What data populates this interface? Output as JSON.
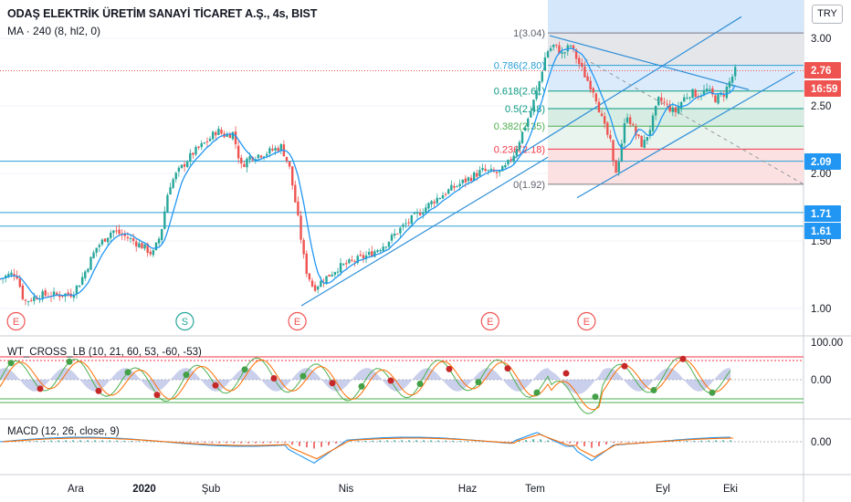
{
  "header": {
    "title": "ODAŞ ELEKTRİK ÜRETİM SANAYİ TİCARET A.Ş., 4s, BIST",
    "indicator": "MA · 240 (8, hl2, 0)",
    "currency": "TRY"
  },
  "colors": {
    "candle_up": "#26a69a",
    "candle_down": "#ef5350",
    "ma_line": "#2196f3",
    "hline": "#2a9fd6",
    "trend": "#2f8fd8",
    "fib_red": "#f23645",
    "fib_green": "#089981",
    "fib_blue": "#2962ff"
  },
  "indicators": {
    "wt_label": "WT_CROSS_LB (10, 21, 60, 53, -60, -53)",
    "macd_label": "MACD (12, 26, close, 9)"
  },
  "chart_data": {
    "type": "candlestick",
    "series_name": "ODAŞ",
    "x_tick_labels": [
      "Ara",
      "2020",
      "Şub",
      "Nis",
      "Haz",
      "Tem",
      "Eyl",
      "Eki"
    ],
    "y_ticks": [
      1.0,
      1.5,
      2.0,
      2.5,
      3.0
    ],
    "y_tick_labels": [
      "1.00",
      "1.50",
      "2.00",
      "2.50",
      "3.00"
    ],
    "ylim": [
      0.9,
      3.25
    ],
    "price_tags": [
      {
        "label": "2.76",
        "value": 2.76,
        "color": "#ef5350"
      },
      {
        "label": "16:59",
        "value": 2.62,
        "color": "#ef5350"
      },
      {
        "label": "2.09",
        "value": 2.09,
        "color": "#2196f3"
      },
      {
        "label": "1.71",
        "value": 1.71,
        "color": "#2196f3"
      },
      {
        "label": "1.61",
        "value": 1.61,
        "color": "#2196f3"
      }
    ],
    "horizontal_lines": [
      2.09,
      1.71,
      1.61
    ],
    "fibonacci": [
      {
        "label": "1(3.04)",
        "value": 3.04
      },
      {
        "label": "0.786(2.80)",
        "value": 2.8
      },
      {
        "label": "0.618(2.61)",
        "value": 2.61
      },
      {
        "label": "0.5(2.48)",
        "value": 2.48
      },
      {
        "label": "0.382(2.35)",
        "value": 2.35
      },
      {
        "label": "0.236(2.18)",
        "value": 2.18
      },
      {
        "label": "0(1.92)",
        "value": 1.92
      }
    ],
    "events": [
      {
        "label": "E",
        "x_frac": 0.02,
        "color": "#ef5350"
      },
      {
        "label": "S",
        "x_frac": 0.23,
        "color": "#26a69a"
      },
      {
        "label": "E",
        "x_frac": 0.37,
        "color": "#ef5350"
      },
      {
        "label": "E",
        "x_frac": 0.61,
        "color": "#ef5350"
      },
      {
        "label": "E",
        "x_frac": 0.73,
        "color": "#ef5350"
      }
    ],
    "price_path": [
      [
        0.0,
        1.22
      ],
      [
        0.02,
        1.27
      ],
      [
        0.03,
        1.05
      ],
      [
        0.05,
        1.1
      ],
      [
        0.07,
        1.1
      ],
      [
        0.09,
        1.11
      ],
      [
        0.1,
        1.2
      ],
      [
        0.12,
        1.45
      ],
      [
        0.14,
        1.58
      ],
      [
        0.16,
        1.52
      ],
      [
        0.18,
        1.45
      ],
      [
        0.19,
        1.4
      ],
      [
        0.2,
        1.55
      ],
      [
        0.21,
        1.9
      ],
      [
        0.22,
        2.0
      ],
      [
        0.24,
        2.15
      ],
      [
        0.26,
        2.25
      ],
      [
        0.27,
        2.32
      ],
      [
        0.28,
        2.28
      ],
      [
        0.29,
        2.3
      ],
      [
        0.3,
        2.05
      ],
      [
        0.31,
        2.12
      ],
      [
        0.33,
        2.15
      ],
      [
        0.35,
        2.2
      ],
      [
        0.36,
        2.05
      ],
      [
        0.37,
        1.7
      ],
      [
        0.38,
        1.3
      ],
      [
        0.39,
        1.15
      ],
      [
        0.4,
        1.2
      ],
      [
        0.42,
        1.3
      ],
      [
        0.44,
        1.35
      ],
      [
        0.46,
        1.4
      ],
      [
        0.48,
        1.48
      ],
      [
        0.5,
        1.6
      ],
      [
        0.52,
        1.7
      ],
      [
        0.54,
        1.8
      ],
      [
        0.56,
        1.88
      ],
      [
        0.58,
        1.95
      ],
      [
        0.6,
        2.02
      ],
      [
        0.62,
        2.0
      ],
      [
        0.63,
        2.05
      ],
      [
        0.64,
        2.15
      ],
      [
        0.66,
        2.45
      ],
      [
        0.67,
        2.65
      ],
      [
        0.68,
        2.9
      ],
      [
        0.69,
        2.95
      ],
      [
        0.7,
        2.88
      ],
      [
        0.71,
        2.95
      ],
      [
        0.72,
        2.82
      ],
      [
        0.73,
        2.7
      ],
      [
        0.74,
        2.6
      ],
      [
        0.75,
        2.38
      ],
      [
        0.76,
        2.22
      ],
      [
        0.765,
        1.98
      ],
      [
        0.77,
        2.1
      ],
      [
        0.78,
        2.45
      ],
      [
        0.79,
        2.3
      ],
      [
        0.8,
        2.2
      ],
      [
        0.81,
        2.35
      ],
      [
        0.82,
        2.55
      ],
      [
        0.83,
        2.5
      ],
      [
        0.84,
        2.45
      ],
      [
        0.85,
        2.55
      ],
      [
        0.86,
        2.6
      ],
      [
        0.87,
        2.58
      ],
      [
        0.88,
        2.62
      ],
      [
        0.89,
        2.55
      ],
      [
        0.9,
        2.58
      ],
      [
        0.91,
        2.7
      ],
      [
        0.915,
        2.76
      ]
    ]
  }
}
